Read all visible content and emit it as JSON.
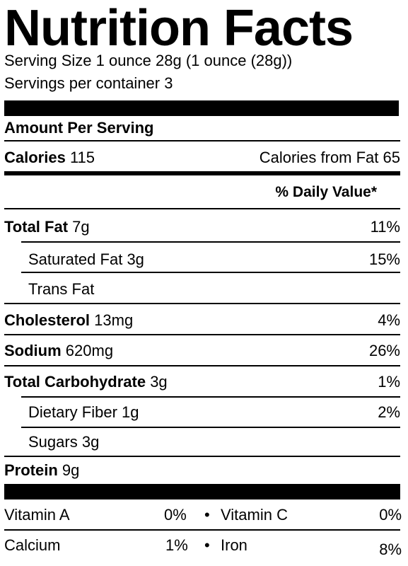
{
  "title": "Nutrition Facts",
  "serving_size": "Serving Size 1 ounce 28g (1 ounce (28g))",
  "servings_per_container": "Servings per container 3",
  "amount_per_serving": "Amount Per Serving",
  "calories": {
    "label": "Calories",
    "value": "115",
    "from_fat": "Calories from Fat 65"
  },
  "daily_value_header": "% Daily Value*",
  "nutrients": [
    {
      "label": "Total Fat",
      "amount": "7g",
      "dv": "11%"
    },
    {
      "label": "Saturated Fat",
      "amount": "3g",
      "dv": "15%"
    },
    {
      "label": "Trans Fat",
      "amount": "",
      "dv": ""
    },
    {
      "label": "Cholesterol",
      "amount": "13mg",
      "dv": "4%"
    },
    {
      "label": "Sodium",
      "amount": "620mg",
      "dv": "26%"
    },
    {
      "label": "Total Carbohydrate",
      "amount": "3g",
      "dv": "1%"
    },
    {
      "label": "Dietary Fiber",
      "amount": "1g",
      "dv": "2%"
    },
    {
      "label": "Sugars",
      "amount": "3g",
      "dv": ""
    },
    {
      "label": "Protein",
      "amount": "9g",
      "dv": ""
    }
  ],
  "vitamins": [
    {
      "label": "Vitamin A",
      "dv": "0%"
    },
    {
      "label": "Vitamin C",
      "dv": "0%"
    },
    {
      "label": "Calcium",
      "dv": "1%"
    },
    {
      "label": "Iron",
      "dv": "8%"
    }
  ],
  "bullet": "•"
}
